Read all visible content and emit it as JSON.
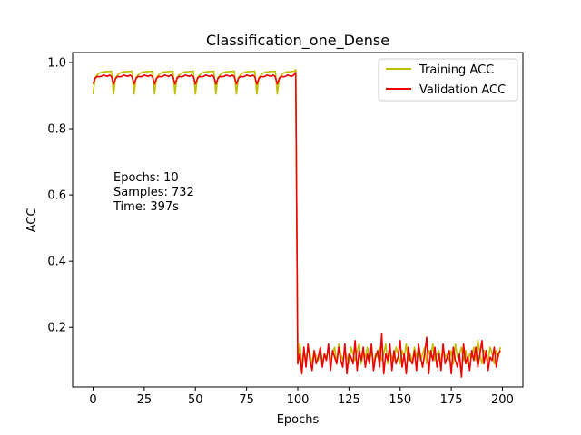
{
  "chart_data": {
    "type": "line",
    "title": "Classification_one_Dense",
    "xlabel": "Epochs",
    "ylabel": "ACC",
    "xlim": [
      -10,
      210
    ],
    "ylim": [
      0.02,
      1.03
    ],
    "xticks": [
      0,
      25,
      50,
      75,
      100,
      125,
      150,
      175,
      200
    ],
    "yticks": [
      0.2,
      0.4,
      0.6,
      0.8,
      1.0
    ],
    "xtick_labels": [
      "0",
      "25",
      "50",
      "75",
      "100",
      "125",
      "150",
      "175",
      "200"
    ],
    "ytick_labels": [
      "0.2",
      "0.4",
      "0.6",
      "0.8",
      "1.0"
    ],
    "grid": false,
    "legend_position": "top-right",
    "annotation": [
      "Epochs: 10",
      "Samples: 732",
      "Time: 397s"
    ],
    "series": [
      {
        "name": "Training ACC",
        "color": "#bfbf00",
        "values": [
          0.905,
          0.955,
          0.962,
          0.968,
          0.97,
          0.972,
          0.972,
          0.973,
          0.973,
          0.974,
          0.905,
          0.955,
          0.962,
          0.968,
          0.97,
          0.972,
          0.972,
          0.973,
          0.973,
          0.974,
          0.905,
          0.955,
          0.962,
          0.968,
          0.97,
          0.972,
          0.972,
          0.973,
          0.973,
          0.974,
          0.905,
          0.955,
          0.962,
          0.968,
          0.97,
          0.972,
          0.972,
          0.973,
          0.973,
          0.974,
          0.905,
          0.955,
          0.962,
          0.968,
          0.97,
          0.972,
          0.972,
          0.973,
          0.973,
          0.974,
          0.905,
          0.955,
          0.962,
          0.968,
          0.97,
          0.972,
          0.972,
          0.973,
          0.973,
          0.974,
          0.905,
          0.955,
          0.962,
          0.968,
          0.97,
          0.972,
          0.972,
          0.973,
          0.973,
          0.974,
          0.905,
          0.955,
          0.962,
          0.968,
          0.97,
          0.972,
          0.972,
          0.973,
          0.973,
          0.974,
          0.905,
          0.955,
          0.962,
          0.968,
          0.97,
          0.972,
          0.972,
          0.973,
          0.973,
          0.974,
          0.905,
          0.955,
          0.962,
          0.968,
          0.97,
          0.972,
          0.972,
          0.973,
          0.973,
          0.978,
          0.09,
          0.15,
          0.08,
          0.13,
          0.1,
          0.14,
          0.12,
          0.09,
          0.13,
          0.11,
          0.1,
          0.14,
          0.09,
          0.12,
          0.11,
          0.13,
          0.1,
          0.12,
          0.14,
          0.09,
          0.15,
          0.12,
          0.1,
          0.13,
          0.11,
          0.09,
          0.14,
          0.12,
          0.1,
          0.13,
          0.15,
          0.09,
          0.12,
          0.11,
          0.14,
          0.1,
          0.13,
          0.09,
          0.12,
          0.11,
          0.14,
          0.1,
          0.12,
          0.15,
          0.09,
          0.13,
          0.11,
          0.1,
          0.14,
          0.12,
          0.09,
          0.13,
          0.11,
          0.15,
          0.1,
          0.12,
          0.09,
          0.14,
          0.11,
          0.13,
          0.1,
          0.12,
          0.14,
          0.09,
          0.13,
          0.11,
          0.15,
          0.1,
          0.12,
          0.13,
          0.09,
          0.14,
          0.11,
          0.12,
          0.1,
          0.13,
          0.09,
          0.15,
          0.11,
          0.12,
          0.14,
          0.1,
          0.13,
          0.09,
          0.12,
          0.11,
          0.14,
          0.1,
          0.16,
          0.12,
          0.09,
          0.13,
          0.11,
          0.1,
          0.14,
          0.12,
          0.09,
          0.13,
          0.11,
          0.14
        ]
      },
      {
        "name": "Validation ACC",
        "color": "#ee0000",
        "values": [
          0.935,
          0.952,
          0.958,
          0.957,
          0.958,
          0.962,
          0.96,
          0.958,
          0.962,
          0.957,
          0.935,
          0.952,
          0.958,
          0.957,
          0.958,
          0.962,
          0.96,
          0.958,
          0.962,
          0.957,
          0.935,
          0.952,
          0.958,
          0.957,
          0.958,
          0.962,
          0.96,
          0.958,
          0.962,
          0.957,
          0.935,
          0.952,
          0.958,
          0.957,
          0.958,
          0.962,
          0.96,
          0.958,
          0.962,
          0.957,
          0.935,
          0.952,
          0.958,
          0.957,
          0.958,
          0.962,
          0.96,
          0.958,
          0.962,
          0.957,
          0.935,
          0.952,
          0.958,
          0.957,
          0.958,
          0.962,
          0.96,
          0.958,
          0.962,
          0.957,
          0.935,
          0.952,
          0.958,
          0.957,
          0.958,
          0.962,
          0.96,
          0.958,
          0.962,
          0.957,
          0.935,
          0.952,
          0.958,
          0.957,
          0.958,
          0.962,
          0.96,
          0.958,
          0.962,
          0.957,
          0.935,
          0.952,
          0.958,
          0.957,
          0.958,
          0.962,
          0.96,
          0.958,
          0.962,
          0.957,
          0.935,
          0.952,
          0.958,
          0.957,
          0.958,
          0.962,
          0.96,
          0.958,
          0.962,
          0.97,
          0.09,
          0.12,
          0.06,
          0.14,
          0.08,
          0.15,
          0.1,
          0.07,
          0.13,
          0.09,
          0.11,
          0.14,
          0.08,
          0.12,
          0.1,
          0.15,
          0.07,
          0.13,
          0.11,
          0.09,
          0.14,
          0.1,
          0.08,
          0.15,
          0.06,
          0.12,
          0.11,
          0.09,
          0.16,
          0.07,
          0.13,
          0.1,
          0.14,
          0.08,
          0.12,
          0.09,
          0.15,
          0.07,
          0.11,
          0.13,
          0.08,
          0.18,
          0.06,
          0.12,
          0.1,
          0.15,
          0.07,
          0.13,
          0.09,
          0.11,
          0.16,
          0.08,
          0.12,
          0.06,
          0.14,
          0.1,
          0.09,
          0.13,
          0.07,
          0.15,
          0.11,
          0.08,
          0.12,
          0.17,
          0.06,
          0.13,
          0.1,
          0.14,
          0.08,
          0.12,
          0.07,
          0.15,
          0.09,
          0.11,
          0.13,
          0.06,
          0.14,
          0.1,
          0.08,
          0.12,
          0.05,
          0.15,
          0.09,
          0.11,
          0.07,
          0.13,
          0.1,
          0.14,
          0.08,
          0.12,
          0.16,
          0.09,
          0.13,
          0.07,
          0.11,
          0.1,
          0.14,
          0.08,
          0.12,
          0.13
        ]
      }
    ]
  }
}
